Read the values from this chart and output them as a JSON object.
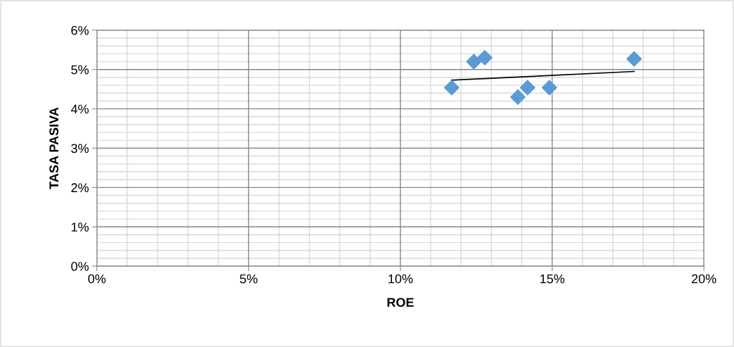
{
  "chart_data": {
    "type": "scatter",
    "xlabel": "ROE",
    "ylabel": "TASA PASIVA",
    "series": [
      {
        "color": "#5b9bd5",
        "marker": "diamond",
        "x": [
          11.69,
          12.42,
          12.78,
          13.87,
          14.19,
          14.91,
          17.7
        ],
        "values": [
          4.54,
          5.2,
          5.3,
          4.3,
          4.54,
          4.54,
          5.27
        ]
      },
      {
        "type": "line",
        "color": "#000000",
        "marker": "none",
        "line_style": "solid",
        "x": [
          11.69,
          17.7
        ],
        "values": [
          4.73,
          4.95
        ]
      }
    ],
    "xlim": [
      0,
      20
    ],
    "xticks": [
      {
        "value": 0,
        "label": "0%"
      },
      {
        "value": 1,
        "label": null
      },
      {
        "value": 2,
        "label": null
      },
      {
        "value": 3,
        "label": null
      },
      {
        "value": 4,
        "label": null
      },
      {
        "value": 5,
        "label": "5%"
      },
      {
        "value": 6,
        "label": null
      },
      {
        "value": 7,
        "label": null
      },
      {
        "value": 8,
        "label": null
      },
      {
        "value": 9,
        "label": null
      },
      {
        "value": 10,
        "label": "10%"
      },
      {
        "value": 11,
        "label": null
      },
      {
        "value": 12,
        "label": null
      },
      {
        "value": 13,
        "label": null
      },
      {
        "value": 14,
        "label": null
      },
      {
        "value": 15,
        "label": "15%"
      },
      {
        "value": 16,
        "label": null
      },
      {
        "value": 17,
        "label": null
      },
      {
        "value": 18,
        "label": null
      },
      {
        "value": 19,
        "label": null
      },
      {
        "value": 20,
        "label": "20%"
      }
    ],
    "ylim": [
      0,
      6
    ],
    "yticks": [
      {
        "value": 0,
        "label": "0%"
      },
      {
        "value": 0.2,
        "label": null
      },
      {
        "value": 0.4,
        "label": null
      },
      {
        "value": 0.6,
        "label": null
      },
      {
        "value": 0.8,
        "label": null
      },
      {
        "value": 1,
        "label": "1%"
      },
      {
        "value": 1.2,
        "label": null
      },
      {
        "value": 1.4,
        "label": null
      },
      {
        "value": 1.6,
        "label": null
      },
      {
        "value": 1.8,
        "label": null
      },
      {
        "value": 2,
        "label": "2%"
      },
      {
        "value": 2.2,
        "label": null
      },
      {
        "value": 2.4,
        "label": null
      },
      {
        "value": 2.6,
        "label": null
      },
      {
        "value": 2.8,
        "label": null
      },
      {
        "value": 3,
        "label": "3%"
      },
      {
        "value": 3.2,
        "label": null
      },
      {
        "value": 3.4,
        "label": null
      },
      {
        "value": 3.6,
        "label": null
      },
      {
        "value": 3.8,
        "label": null
      },
      {
        "value": 4,
        "label": "4%"
      },
      {
        "value": 4.2,
        "label": null
      },
      {
        "value": 4.4,
        "label": null
      },
      {
        "value": 4.6,
        "label": null
      },
      {
        "value": 4.8,
        "label": null
      },
      {
        "value": 5,
        "label": "5%"
      },
      {
        "value": 5.2,
        "label": null
      },
      {
        "value": 5.4,
        "label": null
      },
      {
        "value": 5.6,
        "label": null
      },
      {
        "value": 5.8,
        "label": null
      },
      {
        "value": 6,
        "label": "6%"
      }
    ],
    "grid": true
  }
}
